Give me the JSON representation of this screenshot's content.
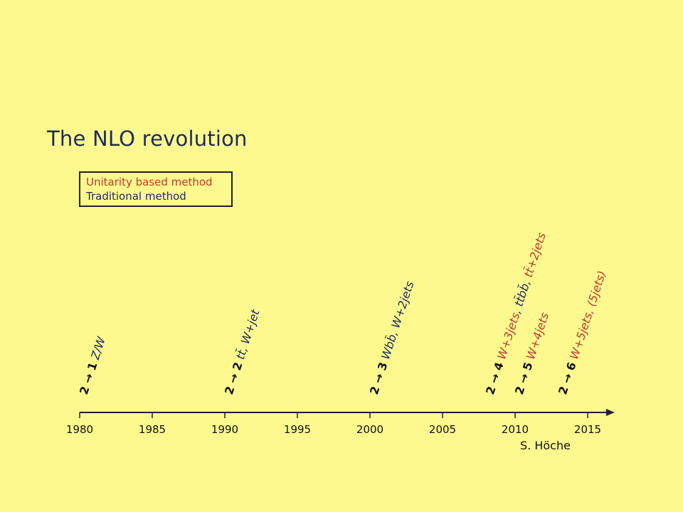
{
  "title": "The NLO revolution",
  "legend": {
    "unitarity": "Unitarity based method",
    "traditional": "Traditional method"
  },
  "colors": {
    "unitarity": "#c0392b",
    "traditional": "#1d2a5c",
    "background": "#fdf98f"
  },
  "axis": {
    "ticks": [
      "1980",
      "1985",
      "1990",
      "1995",
      "2000",
      "2005",
      "2010",
      "2015"
    ],
    "range": [
      1980,
      2017
    ]
  },
  "milestones": [
    {
      "year": 1980.5,
      "process": "2 → 1",
      "items": [
        {
          "text": "Z/W",
          "method": "traditional"
        }
      ]
    },
    {
      "year": 1990.5,
      "process": "2 → 2",
      "items": [
        {
          "text": "tt̄, W+jet",
          "method": "traditional"
        }
      ]
    },
    {
      "year": 2000.5,
      "process": "2 → 3",
      "items": [
        {
          "text": "Wbb̄, W+2jets",
          "method": "traditional"
        }
      ]
    },
    {
      "year": 2008.5,
      "process": "2 → 4",
      "items": [
        {
          "text": "W+3jets",
          "method": "unitarity"
        },
        {
          "text": ", tt̄bb̄, ",
          "method": "traditional"
        },
        {
          "text": "tt̄+2jets",
          "method": "unitarity"
        }
      ]
    },
    {
      "year": 2010.5,
      "process": "2 → 5",
      "items": [
        {
          "text": "W+4jets",
          "method": "unitarity"
        }
      ]
    },
    {
      "year": 2013.5,
      "process": "2 → 6",
      "items": [
        {
          "text": "W+5jets, (5jets)",
          "method": "unitarity"
        }
      ]
    }
  ],
  "credit": "S. Höche"
}
